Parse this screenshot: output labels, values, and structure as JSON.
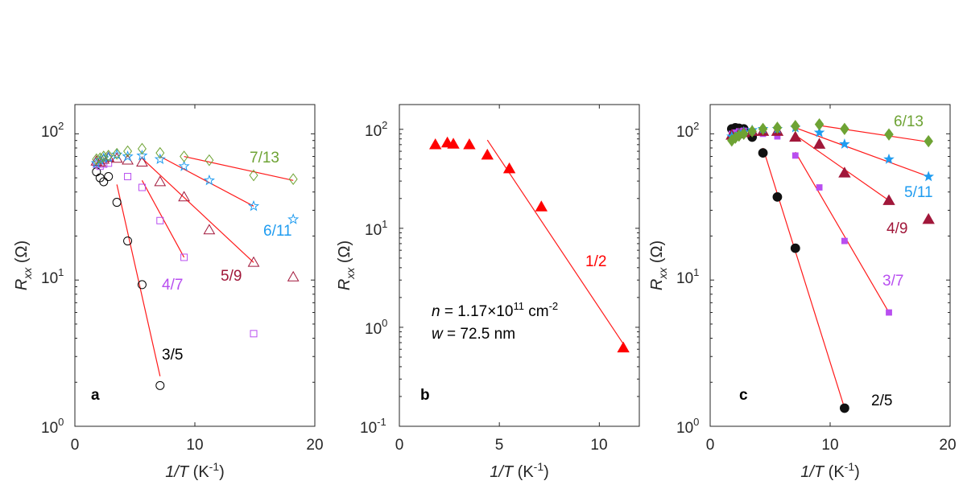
{
  "chart_data": [
    {
      "type": "scatter",
      "panel_label": "a",
      "xlabel_italic": "1/T",
      "xlabel_units": "(K",
      "xlabel_units_exp": "-1",
      "xlabel_units_end": ")",
      "ylabel_symbol": "R",
      "ylabel_sub": "xx",
      "ylabel_units": "(Ω)",
      "xlim": [
        0,
        20
      ],
      "ylim_log10": [
        0,
        2.2
      ],
      "yscale": "log",
      "xticks": [
        0,
        10,
        20
      ],
      "xtick_labels": [
        "0",
        "10",
        "20"
      ],
      "yticks_exp": [
        0,
        1,
        2
      ],
      "ytick_base": "10",
      "ytick_exps": [
        "0",
        "1",
        "2"
      ],
      "series": [
        {
          "name": "3/5",
          "color": "#000000",
          "marker": "circle",
          "x": [
            1.8,
            2.1,
            2.4,
            2.8,
            3.5,
            4.4,
            5.6,
            7.1
          ],
          "y": [
            55,
            50,
            47,
            51,
            34,
            18.5,
            9.3,
            1.9
          ],
          "fit": {
            "x": [
              3.5,
              7.1
            ],
            "y": [
              45,
              2.2
            ]
          },
          "label_pos": "3/5"
        },
        {
          "name": "4/7",
          "color": "#b84ef0",
          "marker": "square",
          "x": [
            1.8,
            2.1,
            2.4,
            2.8,
            4.4,
            5.6,
            7.1,
            9.1,
            14.9
          ],
          "y": [
            62,
            60,
            62,
            63,
            51,
            43,
            25.5,
            14.3,
            4.3
          ],
          "fit": {
            "x": [
              5.6,
              9.1
            ],
            "y": [
              48,
              14.3
            ]
          }
        },
        {
          "name": "5/9",
          "color": "#a1173a",
          "marker": "triangle",
          "x": [
            1.8,
            2.1,
            2.4,
            2.8,
            3.5,
            4.4,
            5.6,
            7.1,
            9.1,
            11.2,
            14.9,
            18.2
          ],
          "y": [
            65,
            64,
            67,
            69,
            68,
            66,
            64,
            47,
            37,
            22,
            13.2,
            10.5
          ],
          "fit": {
            "x": [
              5.6,
              14.9
            ],
            "y": [
              68,
              13.2
            ]
          }
        },
        {
          "name": "6/11",
          "color": "#1f9cf0",
          "marker": "star",
          "x": [
            1.8,
            2.1,
            2.4,
            2.8,
            3.5,
            4.4,
            5.6,
            7.1,
            9.1,
            11.2,
            14.9,
            18.2
          ],
          "y": [
            63,
            66,
            68,
            69,
            72,
            70,
            71,
            67,
            60,
            48,
            32,
            26
          ],
          "fit": {
            "x": [
              7.1,
              14.9
            ],
            "y": [
              70,
              32
            ]
          }
        },
        {
          "name": "7/13",
          "color": "#6ea334",
          "marker": "diamond",
          "x": [
            1.8,
            2.1,
            2.4,
            2.8,
            3.5,
            4.4,
            5.6,
            7.1,
            9.1,
            11.2,
            14.9,
            18.2
          ],
          "y": [
            67,
            68,
            70,
            71,
            73,
            76,
            79,
            74,
            70,
            66,
            52,
            49
          ],
          "fit": {
            "x": [
              9.1,
              18.2
            ],
            "y": [
              70,
              48
            ]
          }
        }
      ],
      "labels": [
        "3/5",
        "4/7",
        "5/9",
        "6/11",
        "7/13"
      ]
    },
    {
      "type": "scatter",
      "panel_label": "b",
      "xlabel_italic": "1/T",
      "xlabel_units": "(K",
      "xlabel_units_exp": "-1",
      "xlabel_units_end": ")",
      "ylabel_symbol": "R",
      "ylabel_sub": "xx",
      "ylabel_units": "(Ω)",
      "xlim": [
        0,
        12
      ],
      "ylim_log10": [
        -1,
        2.25
      ],
      "yscale": "log",
      "xticks": [
        0,
        5,
        10
      ],
      "xtick_labels": [
        "0",
        "5",
        "10"
      ],
      "yticks_exp": [
        -1,
        0,
        1,
        2
      ],
      "ytick_base": "10",
      "ytick_exps": [
        "-1",
        "0",
        "1",
        "2"
      ],
      "series": [
        {
          "name": "1/2",
          "color": "#ff0000",
          "marker": "filled-triangle",
          "x": [
            1.8,
            2.4,
            2.7,
            3.5,
            4.4,
            5.5,
            7.1,
            11.2
          ],
          "y": [
            70,
            73,
            71,
            70,
            55,
            40,
            16.5,
            0.62
          ],
          "fit": {
            "x": [
              4.4,
              11.2
            ],
            "y": [
              78,
              0.68
            ]
          }
        }
      ],
      "labels": [
        "1/2"
      ],
      "annotation": {
        "n_var": "n",
        "n_text": " = 1.17×10",
        "n_exp": "11",
        "n_units": " cm",
        "n_units_exp": "-2",
        "w_var": "w",
        "w_text": " = 72.5 nm"
      }
    },
    {
      "type": "scatter",
      "panel_label": "c",
      "xlabel_italic": "1/T",
      "xlabel_units": "(K",
      "xlabel_units_exp": "-1",
      "xlabel_units_end": ")",
      "ylabel_symbol": "R",
      "ylabel_sub": "xx",
      "ylabel_units": "(Ω)",
      "xlim": [
        0,
        20
      ],
      "ylim_log10": [
        0,
        2.2
      ],
      "yscale": "log",
      "xticks": [
        0,
        10,
        20
      ],
      "xtick_labels": [
        "0",
        "10",
        "20"
      ],
      "yticks_exp": [
        0,
        1,
        2
      ],
      "ytick_base": "10",
      "ytick_exps": [
        "0",
        "1",
        "2"
      ],
      "series": [
        {
          "name": "2/5",
          "color": "#111111",
          "marker": "filled-circle",
          "x": [
            1.8,
            2.1,
            2.4,
            2.8,
            3.5,
            4.4,
            5.6,
            7.1,
            11.2
          ],
          "y": [
            108,
            110,
            109,
            108,
            95,
            74,
            37,
            16.5,
            1.33
          ],
          "fit": {
            "x": [
              4.4,
              11.2
            ],
            "y": [
              80,
              1.33
            ]
          }
        },
        {
          "name": "3/7",
          "color": "#b84ef0",
          "marker": "filled-square",
          "x": [
            1.8,
            2.1,
            2.4,
            2.8,
            3.5,
            4.4,
            5.6,
            7.1,
            9.1,
            11.2,
            14.9
          ],
          "y": [
            100,
            102,
            104,
            105,
            103,
            100,
            96,
            71,
            43,
            18.5,
            6.0
          ],
          "fit": {
            "x": [
              7.1,
              14.9
            ],
            "y": [
              75,
              6.0
            ]
          }
        },
        {
          "name": "4/9",
          "color": "#a1173a",
          "marker": "filled-triangle",
          "x": [
            1.8,
            2.4,
            2.8,
            3.5,
            4.4,
            5.6,
            7.1,
            9.1,
            11.2,
            14.9,
            18.2
          ],
          "y": [
            98,
            100,
            102,
            104,
            104,
            104,
            95,
            85,
            54,
            35,
            26
          ],
          "fit": {
            "x": [
              7.1,
              14.9
            ],
            "y": [
              98,
              35
            ]
          }
        },
        {
          "name": "5/11",
          "color": "#1f9cf0",
          "marker": "filled-star",
          "x": [
            1.8,
            2.4,
            2.8,
            3.5,
            4.4,
            5.6,
            7.1,
            9.1,
            11.2,
            14.9,
            18.2
          ],
          "y": [
            96,
            100,
            103,
            106,
            108,
            108,
            110,
            102,
            85,
            67,
            51
          ],
          "fit": {
            "x": [
              7.1,
              18.2
            ],
            "y": [
              110,
              51
            ]
          }
        },
        {
          "name": "6/13",
          "color": "#6ea334",
          "marker": "filled-diamond",
          "x": [
            1.8,
            2.1,
            2.4,
            2.8,
            3.5,
            4.4,
            5.6,
            7.1,
            9.1,
            11.2,
            14.9,
            18.2
          ],
          "y": [
            90,
            94,
            97,
            100,
            104,
            108,
            110,
            113,
            116,
            108,
            99,
            89
          ],
          "fit": {
            "x": [
              9.1,
              18.2
            ],
            "y": [
              114,
              88
            ]
          }
        }
      ],
      "labels": [
        "2/5",
        "3/7",
        "4/9",
        "5/11",
        "6/13"
      ]
    }
  ]
}
